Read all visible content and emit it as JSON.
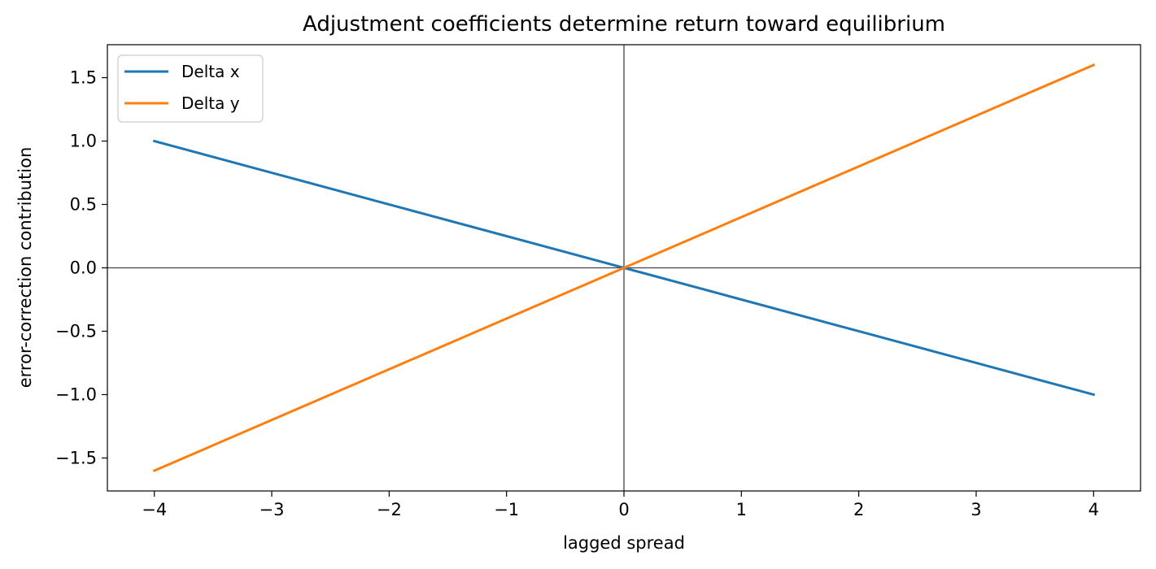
{
  "chart_data": {
    "type": "line",
    "title": "Adjustment coefficients determine return toward equilibrium",
    "xlabel": "lagged spread",
    "ylabel": "error-correction contribution",
    "xlim": [
      -4.4,
      4.4
    ],
    "ylim": [
      -1.76,
      1.76
    ],
    "xticks": [
      -4,
      -3,
      -2,
      -1,
      0,
      1,
      2,
      3,
      4
    ],
    "xtick_labels": [
      "−4",
      "−3",
      "−2",
      "−1",
      "0",
      "1",
      "2",
      "3",
      "4"
    ],
    "yticks": [
      -1.5,
      -1.0,
      -0.5,
      0.0,
      0.5,
      1.0,
      1.5
    ],
    "ytick_labels": [
      "−1.5",
      "−1.0",
      "−0.5",
      "0.0",
      "0.5",
      "1.0",
      "1.5"
    ],
    "grid": false,
    "legend_position": "top-left",
    "reference_lines": {
      "x": 0,
      "y": 0,
      "color": "#444444"
    },
    "x": [
      -4,
      -3,
      -2,
      -1,
      0,
      1,
      2,
      3,
      4
    ],
    "series": [
      {
        "name": "Delta x",
        "color": "#1f77b4",
        "values": [
          1.0,
          0.75,
          0.5,
          0.25,
          0.0,
          -0.25,
          -0.5,
          -0.75,
          -1.0
        ]
      },
      {
        "name": "Delta y",
        "color": "#ff7f0e",
        "values": [
          -1.6,
          -1.2,
          -0.8,
          -0.4,
          0.0,
          0.4,
          0.8,
          1.2,
          1.6
        ]
      }
    ]
  }
}
